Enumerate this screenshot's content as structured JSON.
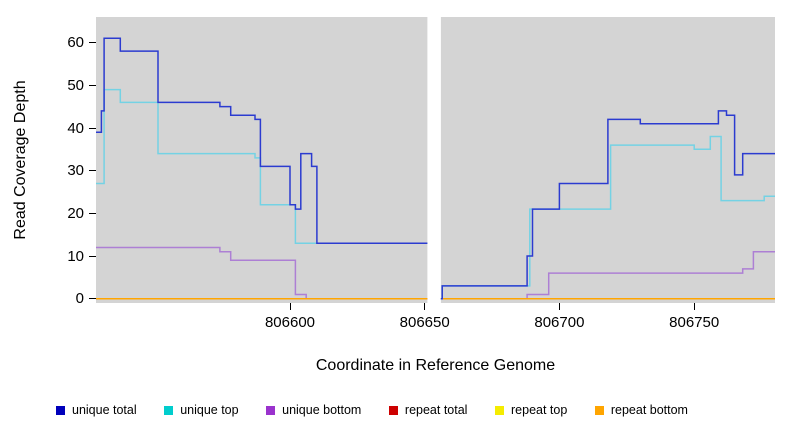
{
  "chart_data": {
    "type": "line",
    "subtype": "step",
    "xlabel": "Coordinate in Reference Genome",
    "ylabel": "Read Coverage Depth",
    "xlim": [
      806528,
      806780
    ],
    "ylim": [
      -1,
      66
    ],
    "x_ticks": [
      806600,
      806650,
      806700,
      806750
    ],
    "y_ticks": [
      0,
      10,
      20,
      30,
      40,
      50,
      60
    ],
    "plot_background": "#d4d4d4",
    "gap_band": {
      "x0": 806651,
      "x1": 806656,
      "color": "#ffffff"
    },
    "series": [
      {
        "name": "repeat total",
        "color": "#cd0000",
        "segments": [
          [
            [
              806528,
              0
            ],
            [
              806651,
              0
            ]
          ],
          [
            [
              806656,
              0
            ],
            [
              806780,
              0
            ]
          ]
        ]
      },
      {
        "name": "repeat top",
        "color": "#f2e400",
        "segments": [
          [
            [
              806528,
              0
            ],
            [
              806651,
              0
            ]
          ],
          [
            [
              806656,
              0
            ],
            [
              806780,
              0
            ]
          ]
        ]
      },
      {
        "name": "unique bottom",
        "color": "#ad7fd4",
        "segments": [
          [
            [
              806528,
              12
            ],
            [
              806574,
              11
            ],
            [
              806578,
              9
            ],
            [
              806602,
              1
            ],
            [
              806606,
              0
            ],
            [
              806651,
              0
            ]
          ],
          [
            [
              806656,
              0
            ],
            [
              806688,
              1
            ],
            [
              806696,
              6
            ],
            [
              806768,
              7
            ],
            [
              806772,
              11
            ],
            [
              806780,
              11
            ]
          ]
        ]
      },
      {
        "name": "repeat bottom",
        "color": "#ffa500",
        "segments": [
          [
            [
              806528,
              0
            ],
            [
              806651,
              0
            ]
          ],
          [
            [
              806656,
              0
            ],
            [
              806780,
              0
            ]
          ]
        ]
      },
      {
        "name": "unique top",
        "color": "#74d2e4",
        "segments": [
          [
            [
              806528,
              27
            ],
            [
              806531,
              49
            ],
            [
              806537,
              46
            ],
            [
              806551,
              34
            ],
            [
              806587,
              33
            ],
            [
              806589,
              22
            ],
            [
              806602,
              13
            ],
            [
              806651,
              13
            ]
          ],
          [
            [
              806656,
              0
            ],
            [
              806656.5,
              3
            ],
            [
              806689,
              21
            ],
            [
              806719,
              36
            ],
            [
              806750,
              35
            ],
            [
              806756,
              38
            ],
            [
              806760,
              23
            ],
            [
              806776,
              24
            ],
            [
              806780,
              24
            ]
          ]
        ]
      },
      {
        "name": "unique total",
        "color": "#2b3bd0",
        "segments": [
          [
            [
              806528,
              39
            ],
            [
              806530,
              44
            ],
            [
              806531,
              61
            ],
            [
              806537,
              58
            ],
            [
              806551,
              46
            ],
            [
              806574,
              45
            ],
            [
              806578,
              43
            ],
            [
              806587,
              42
            ],
            [
              806589,
              31
            ],
            [
              806600,
              22
            ],
            [
              806602,
              21
            ],
            [
              806604,
              34
            ],
            [
              806608,
              31
            ],
            [
              806610,
              13
            ],
            [
              806651,
              13
            ]
          ],
          [
            [
              806656,
              0
            ],
            [
              806656.5,
              3
            ],
            [
              806688,
              10
            ],
            [
              806690,
              21
            ],
            [
              806700,
              27
            ],
            [
              806718,
              42
            ],
            [
              806730,
              41
            ],
            [
              806759,
              44
            ],
            [
              806762,
              43
            ],
            [
              806765,
              29
            ],
            [
              806768,
              34
            ],
            [
              806780,
              34
            ]
          ]
        ]
      }
    ],
    "legend": [
      {
        "label": "unique total",
        "color": "#0000bb"
      },
      {
        "label": "unique top",
        "color": "#00cdcd"
      },
      {
        "label": "unique bottom",
        "color": "#9a32cd"
      },
      {
        "label": "repeat total",
        "color": "#cd0000"
      },
      {
        "label": "repeat top",
        "color": "#f5ec00"
      },
      {
        "label": "repeat bottom",
        "color": "#ffa500"
      }
    ]
  }
}
